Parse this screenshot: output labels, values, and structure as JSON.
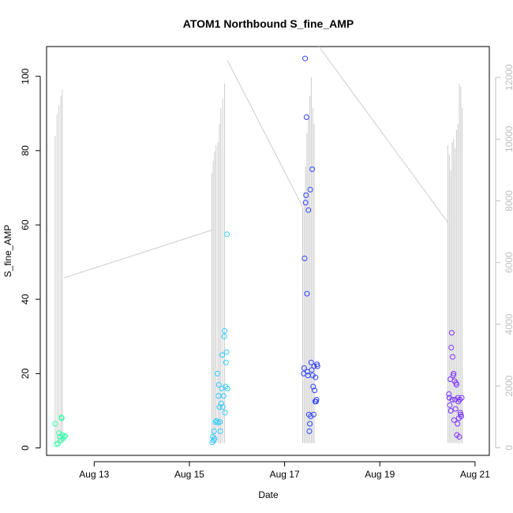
{
  "chart_data": {
    "type": "scatter",
    "title": "ATOM1 Northbound S_fine_AMP",
    "xlabel": "Date",
    "ylabel": "S_fine_AMP",
    "x_ticks": [
      {
        "value": 13,
        "label": "Aug 13"
      },
      {
        "value": 15,
        "label": "Aug 15"
      },
      {
        "value": 17,
        "label": "Aug 17"
      },
      {
        "value": 19,
        "label": "Aug 19"
      },
      {
        "value": 21,
        "label": "Aug 21"
      }
    ],
    "xlim": [
      12.0,
      21.3
    ],
    "ylim": [
      -2,
      108
    ],
    "y_ticks": [
      0,
      20,
      40,
      60,
      80,
      100
    ],
    "y2lim": [
      -250,
      13000
    ],
    "y2_ticks": [
      0,
      2000,
      4000,
      6000,
      8000,
      10000,
      12000
    ],
    "grid": false,
    "points": [
      {
        "x": 12.18,
        "y": 6.5,
        "color": "#33ffa8"
      },
      {
        "x": 12.21,
        "y": 1.0,
        "color": "#33ffa8"
      },
      {
        "x": 12.24,
        "y": 1.2,
        "color": "#33ffa8"
      },
      {
        "x": 12.26,
        "y": 4.0,
        "color": "#33ffa8"
      },
      {
        "x": 12.28,
        "y": 3.0,
        "color": "#33ffa8"
      },
      {
        "x": 12.3,
        "y": 2.0,
        "color": "#33ffa8"
      },
      {
        "x": 12.31,
        "y": 8.2,
        "color": "#33ffa8"
      },
      {
        "x": 12.32,
        "y": 8.0,
        "color": "#33ffa8"
      },
      {
        "x": 12.33,
        "y": 3.5,
        "color": "#33ffa8"
      },
      {
        "x": 12.35,
        "y": 2.5,
        "color": "#33ffa8"
      },
      {
        "x": 12.37,
        "y": 3.0,
        "color": "#33ffa8"
      },
      {
        "x": 12.39,
        "y": 3.2,
        "color": "#33ffa8"
      },
      {
        "x": 15.48,
        "y": 1.5,
        "color": "#33ccff"
      },
      {
        "x": 15.49,
        "y": 3.0,
        "color": "#33ccff"
      },
      {
        "x": 15.51,
        "y": 2.0,
        "color": "#33ccff"
      },
      {
        "x": 15.52,
        "y": 4.5,
        "color": "#33ccff"
      },
      {
        "x": 15.53,
        "y": 2.5,
        "color": "#33ccff"
      },
      {
        "x": 15.55,
        "y": 7.0,
        "color": "#33ccff"
      },
      {
        "x": 15.57,
        "y": 7.3,
        "color": "#33ccff"
      },
      {
        "x": 15.59,
        "y": 20.0,
        "color": "#33ccff"
      },
      {
        "x": 15.6,
        "y": 6.8,
        "color": "#33ccff"
      },
      {
        "x": 15.61,
        "y": 14.0,
        "color": "#33ccff"
      },
      {
        "x": 15.62,
        "y": 17.0,
        "color": "#33ccff"
      },
      {
        "x": 15.63,
        "y": 11.0,
        "color": "#33ccff"
      },
      {
        "x": 15.64,
        "y": 7.0,
        "color": "#33ccff"
      },
      {
        "x": 15.65,
        "y": 4.5,
        "color": "#33ccff"
      },
      {
        "x": 15.67,
        "y": 12.0,
        "color": "#33ccff"
      },
      {
        "x": 15.68,
        "y": 16.0,
        "color": "#33ccff"
      },
      {
        "x": 15.69,
        "y": 25.0,
        "color": "#33ccff"
      },
      {
        "x": 15.7,
        "y": 11.0,
        "color": "#33ccff"
      },
      {
        "x": 15.72,
        "y": 14.0,
        "color": "#33ccff"
      },
      {
        "x": 15.73,
        "y": 30.0,
        "color": "#33ccff"
      },
      {
        "x": 15.74,
        "y": 31.5,
        "color": "#33ccff"
      },
      {
        "x": 15.75,
        "y": 9.5,
        "color": "#33ccff"
      },
      {
        "x": 15.76,
        "y": 16.5,
        "color": "#33ccff"
      },
      {
        "x": 15.77,
        "y": 23.0,
        "color": "#33ccff"
      },
      {
        "x": 15.78,
        "y": 25.8,
        "color": "#33ccff"
      },
      {
        "x": 15.79,
        "y": 57.5,
        "color": "#33ccff"
      },
      {
        "x": 15.8,
        "y": 16.0,
        "color": "#33ccff"
      },
      {
        "x": 17.4,
        "y": 20.0,
        "color": "#3344ff"
      },
      {
        "x": 17.41,
        "y": 21.5,
        "color": "#3344ff"
      },
      {
        "x": 17.42,
        "y": 51.0,
        "color": "#3344ff"
      },
      {
        "x": 17.43,
        "y": 104.8,
        "color": "#3344ff"
      },
      {
        "x": 17.44,
        "y": 66.0,
        "color": "#3344ff"
      },
      {
        "x": 17.45,
        "y": 68.0,
        "color": "#3344ff"
      },
      {
        "x": 17.46,
        "y": 89.0,
        "color": "#3344ff"
      },
      {
        "x": 17.47,
        "y": 41.5,
        "color": "#3344ff"
      },
      {
        "x": 17.48,
        "y": 20.5,
        "color": "#3344ff"
      },
      {
        "x": 17.49,
        "y": 19.5,
        "color": "#3344ff"
      },
      {
        "x": 17.5,
        "y": 64.0,
        "color": "#3344ff"
      },
      {
        "x": 17.51,
        "y": 9.0,
        "color": "#3344ff"
      },
      {
        "x": 17.52,
        "y": 4.5,
        "color": "#3344ff"
      },
      {
        "x": 17.53,
        "y": 6.5,
        "color": "#3344ff"
      },
      {
        "x": 17.54,
        "y": 69.5,
        "color": "#3344ff"
      },
      {
        "x": 17.55,
        "y": 8.5,
        "color": "#3344ff"
      },
      {
        "x": 17.56,
        "y": 23.0,
        "color": "#3344ff"
      },
      {
        "x": 17.57,
        "y": 21.0,
        "color": "#3344ff"
      },
      {
        "x": 17.58,
        "y": 75.0,
        "color": "#3344ff"
      },
      {
        "x": 17.59,
        "y": 19.5,
        "color": "#3344ff"
      },
      {
        "x": 17.6,
        "y": 16.5,
        "color": "#3344ff"
      },
      {
        "x": 17.61,
        "y": 9.0,
        "color": "#3344ff"
      },
      {
        "x": 17.62,
        "y": 22.0,
        "color": "#3344ff"
      },
      {
        "x": 17.63,
        "y": 15.5,
        "color": "#3344ff"
      },
      {
        "x": 17.64,
        "y": 12.5,
        "color": "#3344ff"
      },
      {
        "x": 17.65,
        "y": 19.0,
        "color": "#3344ff"
      },
      {
        "x": 17.66,
        "y": 12.5,
        "color": "#3344ff"
      },
      {
        "x": 17.67,
        "y": 13.0,
        "color": "#3344ff"
      },
      {
        "x": 17.68,
        "y": 22.5,
        "color": "#3344ff"
      },
      {
        "x": 17.69,
        "y": 22.0,
        "color": "#3344ff"
      },
      {
        "x": 20.45,
        "y": 14.5,
        "color": "#7a33ff"
      },
      {
        "x": 20.46,
        "y": 13.5,
        "color": "#7a33ff"
      },
      {
        "x": 20.47,
        "y": 11.5,
        "color": "#7a33ff"
      },
      {
        "x": 20.48,
        "y": 18.5,
        "color": "#7a33ff"
      },
      {
        "x": 20.49,
        "y": 10.0,
        "color": "#7a33ff"
      },
      {
        "x": 20.5,
        "y": 27.0,
        "color": "#7a33ff"
      },
      {
        "x": 20.51,
        "y": 31.0,
        "color": "#7a33ff"
      },
      {
        "x": 20.52,
        "y": 13.0,
        "color": "#7a33ff"
      },
      {
        "x": 20.53,
        "y": 24.5,
        "color": "#7a33ff"
      },
      {
        "x": 20.54,
        "y": 19.5,
        "color": "#7a33ff"
      },
      {
        "x": 20.55,
        "y": 20.0,
        "color": "#7a33ff"
      },
      {
        "x": 20.56,
        "y": 7.5,
        "color": "#7a33ff"
      },
      {
        "x": 20.57,
        "y": 18.0,
        "color": "#7a33ff"
      },
      {
        "x": 20.58,
        "y": 13.0,
        "color": "#7a33ff"
      },
      {
        "x": 20.59,
        "y": 10.5,
        "color": "#7a33ff"
      },
      {
        "x": 20.6,
        "y": 17.5,
        "color": "#7a33ff"
      },
      {
        "x": 20.61,
        "y": 17.0,
        "color": "#7a33ff"
      },
      {
        "x": 20.62,
        "y": 3.5,
        "color": "#7a33ff"
      },
      {
        "x": 20.63,
        "y": 6.5,
        "color": "#7a33ff"
      },
      {
        "x": 20.64,
        "y": 13.5,
        "color": "#7a33ff"
      },
      {
        "x": 20.65,
        "y": 12.5,
        "color": "#7a33ff"
      },
      {
        "x": 20.66,
        "y": 8.0,
        "color": "#7a33ff"
      },
      {
        "x": 20.67,
        "y": 3.0,
        "color": "#7a33ff"
      },
      {
        "x": 20.68,
        "y": 13.0,
        "color": "#7a33ff"
      },
      {
        "x": 20.69,
        "y": 9.5,
        "color": "#7a33ff"
      },
      {
        "x": 20.7,
        "y": 9.0,
        "color": "#7a33ff"
      },
      {
        "x": 20.71,
        "y": 8.5,
        "color": "#7a33ff"
      },
      {
        "x": 20.72,
        "y": 13.5,
        "color": "#7a33ff"
      }
    ],
    "secondary_line": {
      "color": "#cccccc",
      "segments": [
        [
          12.18,
          150,
          10100
        ],
        [
          12.22,
          150,
          10800
        ],
        [
          12.26,
          150,
          11100
        ],
        [
          12.3,
          150,
          11400
        ],
        [
          12.33,
          150,
          11600
        ],
        [
          12.36,
          5500,
          5500
        ],
        [
          15.47,
          150,
          8900
        ],
        [
          15.5,
          150,
          9300
        ],
        [
          15.53,
          150,
          9600
        ],
        [
          15.56,
          150,
          9800
        ],
        [
          15.6,
          150,
          9900
        ],
        [
          15.63,
          150,
          10500
        ],
        [
          15.66,
          150,
          11000
        ],
        [
          15.7,
          150,
          11300
        ],
        [
          15.74,
          150,
          11800
        ],
        [
          17.38,
          150,
          7800
        ],
        [
          17.41,
          150,
          8300
        ],
        [
          17.44,
          150,
          9100
        ],
        [
          17.47,
          150,
          10200
        ],
        [
          17.5,
          150,
          10800
        ],
        [
          17.53,
          150,
          11400
        ],
        [
          17.56,
          150,
          12000
        ],
        [
          17.59,
          150,
          11000
        ],
        [
          17.62,
          150,
          10500
        ],
        [
          20.43,
          150,
          9800
        ],
        [
          20.46,
          150,
          9500
        ],
        [
          20.49,
          150,
          9000
        ],
        [
          20.52,
          150,
          9900
        ],
        [
          20.55,
          150,
          10000
        ],
        [
          20.58,
          150,
          9700
        ],
        [
          20.61,
          150,
          10300
        ],
        [
          20.64,
          150,
          10500
        ],
        [
          20.67,
          150,
          11800
        ],
        [
          20.7,
          150,
          11700
        ],
        [
          20.73,
          150,
          11000
        ]
      ],
      "connectors": [
        [
          12.36,
          5500
        ],
        [
          15.47,
          7050
        ],
        [
          15.8,
          12550
        ],
        [
          17.38,
          7800
        ],
        [
          17.72,
          13000
        ],
        [
          20.43,
          7300
        ]
      ]
    }
  }
}
